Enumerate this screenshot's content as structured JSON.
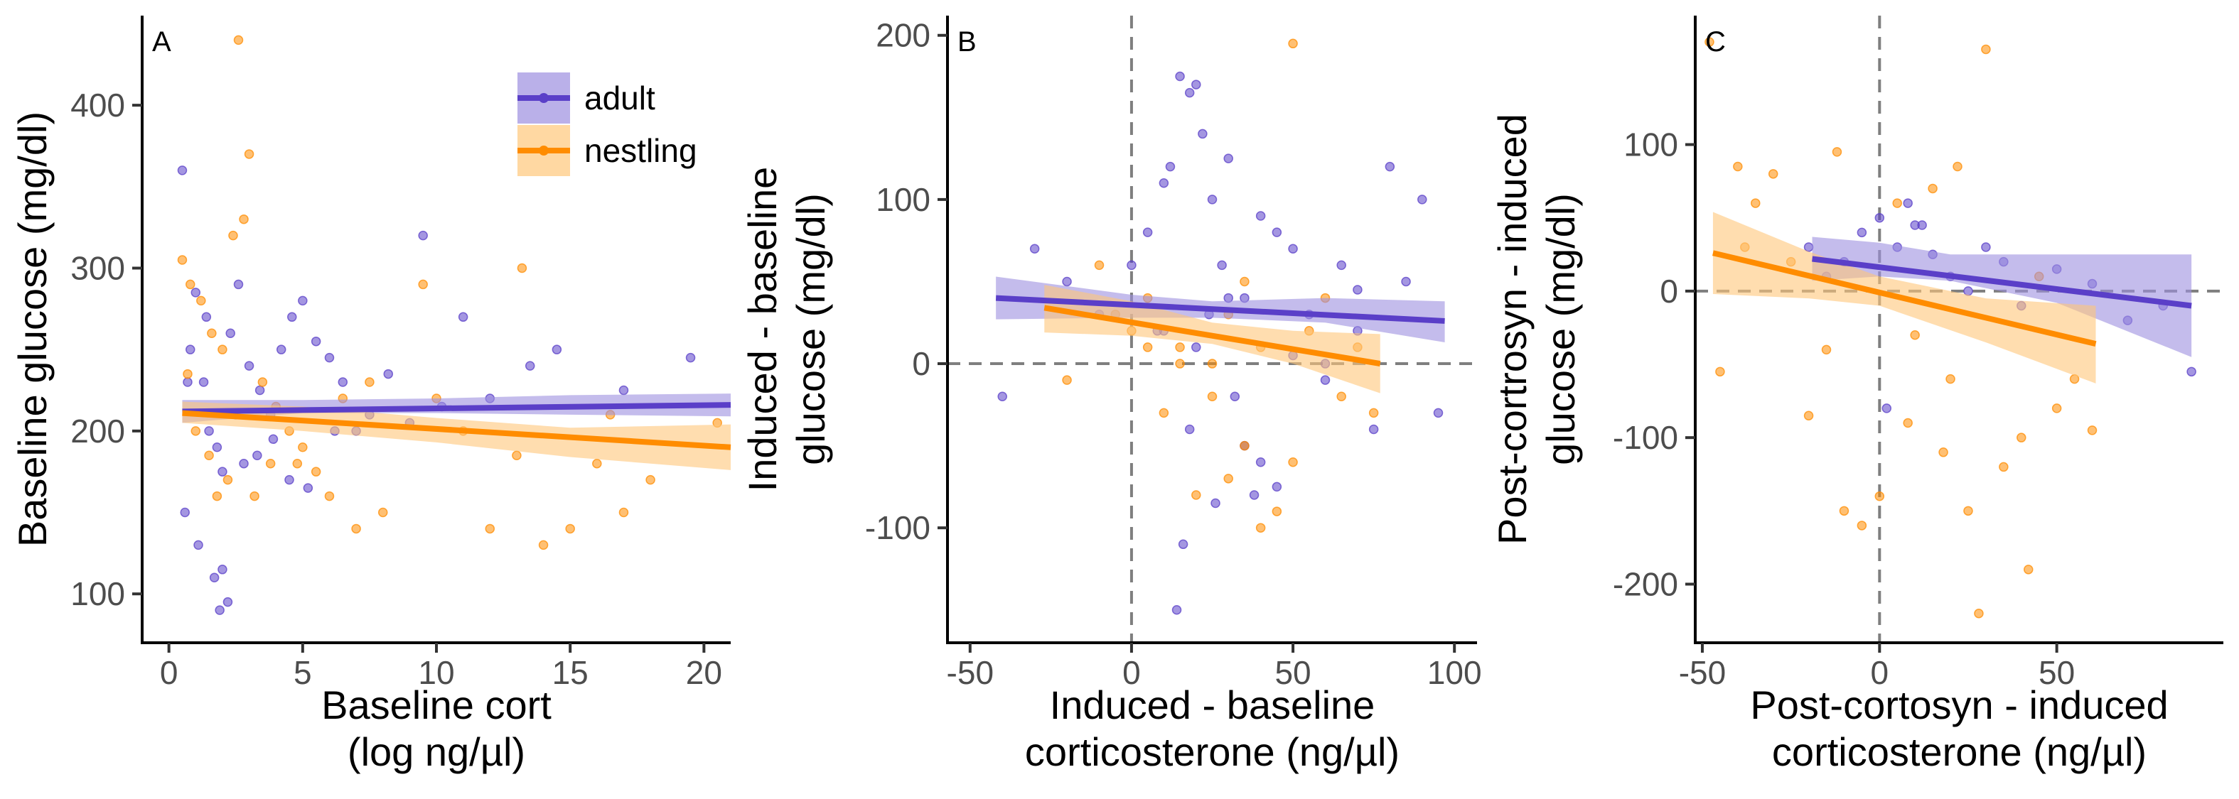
{
  "colors": {
    "adult": "#5a3fc8",
    "nestling": "#ff8c00",
    "adult_ribbon": "#9d8fe0",
    "nestling_ribbon": "#ffc77a",
    "refline": "#7f7f7f"
  },
  "legend": {
    "position": "top-right of panel A",
    "items": [
      {
        "label": "adult",
        "color": "#5a3fc8"
      },
      {
        "label": "nestling",
        "color": "#ff8c00"
      }
    ]
  },
  "chart_data": [
    {
      "tag": "A",
      "type": "scatter",
      "xlabel": [
        "Baseline cort",
        "(log ng/µl)"
      ],
      "ylabel": [
        "Baseline glucose (mg/dl)"
      ],
      "xlim": [
        -1,
        21
      ],
      "ylim": [
        70,
        455
      ],
      "xticks": [
        0,
        5,
        10,
        15,
        20
      ],
      "yticks": [
        100,
        200,
        300,
        400
      ],
      "reflines": [],
      "grid": false,
      "series": [
        {
          "name": "adult",
          "fit": {
            "x": [
              0.5,
              21
            ],
            "y": [
              212,
              216
            ]
          },
          "ci": {
            "x": [
              0.5,
              5,
              10,
              15,
              21
            ],
            "lo": [
              205,
              211,
              211,
              210,
              209
            ],
            "hi": [
              219,
              219,
              220,
              222,
              223
            ]
          },
          "points": {
            "x": [
              0.5,
              0.8,
              1.0,
              1.3,
              1.5,
              1.8,
              2.0,
              2.3,
              2.6,
              3.0,
              3.4,
              3.8,
              4.2,
              4.6,
              5.0,
              5.5,
              6.0,
              6.5,
              7.0,
              7.5,
              8.2,
              9.0,
              9.5,
              10.2,
              11.0,
              12.0,
              13.5,
              14.5,
              17.0,
              19.5,
              0.6,
              1.1,
              1.7,
              2.2,
              2.8,
              3.3,
              3.9,
              4.5,
              5.2,
              6.2,
              1.4,
              2.0,
              0.7,
              1.9,
              2.5
            ],
            "y": [
              360,
              250,
              285,
              230,
              200,
              190,
              175,
              260,
              290,
              240,
              225,
              210,
              250,
              270,
              280,
              255,
              245,
              230,
              200,
              210,
              235,
              205,
              320,
              215,
              270,
              220,
              240,
              250,
              225,
              245,
              150,
              130,
              110,
              95,
              180,
              185,
              195,
              170,
              165,
              200,
              270,
              115,
              230,
              90,
              210
            ]
          }
        },
        {
          "name": "nestling",
          "fit": {
            "x": [
              0.5,
              21
            ],
            "y": [
              211,
              190
            ]
          },
          "ci": {
            "x": [
              0.5,
              5,
              10,
              15,
              21
            ],
            "lo": [
              205,
              200,
              193,
              184,
              176
            ],
            "hi": [
              218,
              215,
              208,
              202,
              204
            ]
          },
          "points": {
            "x": [
              2.6,
              3.0,
              2.8,
              2.4,
              0.5,
              0.8,
              1.2,
              1.6,
              2.0,
              3.5,
              4.0,
              4.5,
              5.0,
              5.5,
              6.0,
              7.0,
              8.0,
              9.5,
              10.0,
              11.0,
              12.0,
              13.0,
              14.0,
              15.0,
              16.0,
              17.0,
              18.0,
              20.5,
              1.0,
              1.5,
              2.2,
              3.2,
              4.8,
              6.5,
              7.5,
              13.2,
              16.5,
              0.7,
              1.8,
              3.8
            ],
            "y": [
              440,
              370,
              330,
              320,
              305,
              290,
              280,
              260,
              250,
              230,
              215,
              200,
              190,
              175,
              160,
              140,
              150,
              290,
              220,
              200,
              140,
              185,
              130,
              140,
              180,
              150,
              170,
              205,
              200,
              185,
              170,
              160,
              180,
              220,
              230,
              300,
              210,
              235,
              160,
              180
            ]
          }
        }
      ]
    },
    {
      "tag": "B",
      "type": "scatter",
      "xlabel": [
        "Induced - baseline",
        "corticosterone (ng/µl)"
      ],
      "ylabel": [
        "Induced - baseline",
        "glucose (mg/dl)"
      ],
      "xlim": [
        -57,
        107
      ],
      "ylim": [
        -170,
        212
      ],
      "xticks": [
        -50,
        0,
        50,
        100
      ],
      "yticks": [
        -100,
        0,
        100,
        200
      ],
      "reflines": [
        {
          "axis": "x",
          "value": 0
        },
        {
          "axis": "y",
          "value": 0
        }
      ],
      "grid": false,
      "series": [
        {
          "name": "adult",
          "fit": {
            "x": [
              -42,
              97
            ],
            "y": [
              40,
              26
            ]
          },
          "ci": {
            "x": [
              -42,
              0,
              25,
              60,
              97
            ],
            "lo": [
              27,
              28,
              28,
              25,
              13
            ],
            "hi": [
              53,
              42,
              38,
              40,
              38
            ]
          },
          "points": {
            "x": [
              -40,
              -30,
              -20,
              -10,
              0,
              5,
              10,
              12,
              15,
              18,
              20,
              22,
              25,
              28,
              30,
              32,
              35,
              38,
              40,
              45,
              50,
              55,
              60,
              65,
              70,
              75,
              80,
              85,
              90,
              95,
              14,
              16,
              26,
              30,
              20,
              10,
              40,
              50,
              60,
              35,
              24,
              18,
              8,
              45,
              70
            ],
            "y": [
              -20,
              70,
              50,
              30,
              60,
              80,
              110,
              120,
              175,
              165,
              170,
              140,
              100,
              60,
              40,
              -20,
              -50,
              -80,
              90,
              80,
              70,
              30,
              -10,
              60,
              20,
              -40,
              120,
              50,
              100,
              -30,
              -150,
              -110,
              -85,
              125,
              10,
              20,
              -60,
              5,
              0,
              40,
              30,
              -40,
              20,
              -75,
              45
            ]
          }
        },
        {
          "name": "nestling",
          "fit": {
            "x": [
              -27,
              77
            ],
            "y": [
              34,
              0
            ]
          },
          "ci": {
            "x": [
              -27,
              0,
              25,
              50,
              77
            ],
            "lo": [
              19,
              17,
              12,
              0,
              -18
            ],
            "hi": [
              48,
              38,
              25,
              20,
              18
            ]
          },
          "points": {
            "x": [
              -20,
              -10,
              0,
              5,
              10,
              15,
              20,
              25,
              30,
              35,
              40,
              45,
              50,
              55,
              60,
              65,
              70,
              75,
              50,
              25,
              15,
              5,
              40,
              35,
              -5,
              30
            ],
            "y": [
              -10,
              60,
              20,
              40,
              -30,
              10,
              -80,
              0,
              30,
              -50,
              10,
              -90,
              -60,
              20,
              40,
              -20,
              10,
              -30,
              195,
              -20,
              0,
              10,
              -100,
              50,
              30,
              -70
            ]
          }
        }
      ]
    },
    {
      "tag": "C",
      "type": "scatter",
      "xlabel": [
        "Post-cortosyn - induced",
        "corticosterone (ng/µl)"
      ],
      "ylabel": [
        "Post-cortrosyn - induced",
        "glucose (mg/dl)"
      ],
      "xlim": [
        -52,
        97
      ],
      "ylim": [
        -240,
        188
      ],
      "xticks": [
        -50,
        0,
        50
      ],
      "yticks": [
        -200,
        -100,
        0,
        100
      ],
      "reflines": [
        {
          "axis": "x",
          "value": 0
        },
        {
          "axis": "y",
          "value": 0
        }
      ],
      "grid": false,
      "series": [
        {
          "name": "adult",
          "fit": {
            "x": [
              -19,
              88
            ],
            "y": [
              22,
              -10
            ]
          },
          "ci": {
            "x": [
              -19,
              0,
              20,
              50,
              88
            ],
            "lo": [
              7,
              10,
              7,
              -8,
              -45
            ],
            "hi": [
              37,
              33,
              25,
              25,
              25
            ]
          },
          "points": {
            "x": [
              -20,
              -15,
              -10,
              -5,
              0,
              5,
              10,
              15,
              20,
              25,
              30,
              35,
              40,
              50,
              60,
              70,
              80,
              88,
              2,
              8,
              12
            ],
            "y": [
              30,
              10,
              20,
              40,
              50,
              30,
              45,
              25,
              10,
              0,
              30,
              20,
              -10,
              15,
              5,
              -20,
              -10,
              -55,
              -80,
              60,
              45
            ]
          }
        },
        {
          "name": "nestling",
          "fit": {
            "x": [
              -47,
              61
            ],
            "y": [
              26,
              -36
            ]
          },
          "ci": {
            "x": [
              -47,
              -20,
              0,
              30,
              61
            ],
            "lo": [
              -2,
              -5,
              -10,
              -35,
              -63
            ],
            "hi": [
              54,
              27,
              10,
              -5,
              -10
            ]
          },
          "points": {
            "x": [
              -48,
              -45,
              -40,
              -35,
              -30,
              -25,
              -20,
              -15,
              -10,
              -5,
              0,
              5,
              10,
              15,
              20,
              25,
              30,
              35,
              40,
              45,
              50,
              55,
              60,
              -38,
              -12,
              8,
              18,
              28,
              42,
              22
            ],
            "y": [
              170,
              -55,
              85,
              60,
              80,
              20,
              -85,
              -40,
              -150,
              -160,
              -140,
              60,
              -30,
              70,
              -60,
              -150,
              165,
              -120,
              -100,
              10,
              -80,
              -60,
              -95,
              30,
              95,
              -90,
              -110,
              -220,
              -190,
              85
            ]
          }
        }
      ]
    }
  ]
}
